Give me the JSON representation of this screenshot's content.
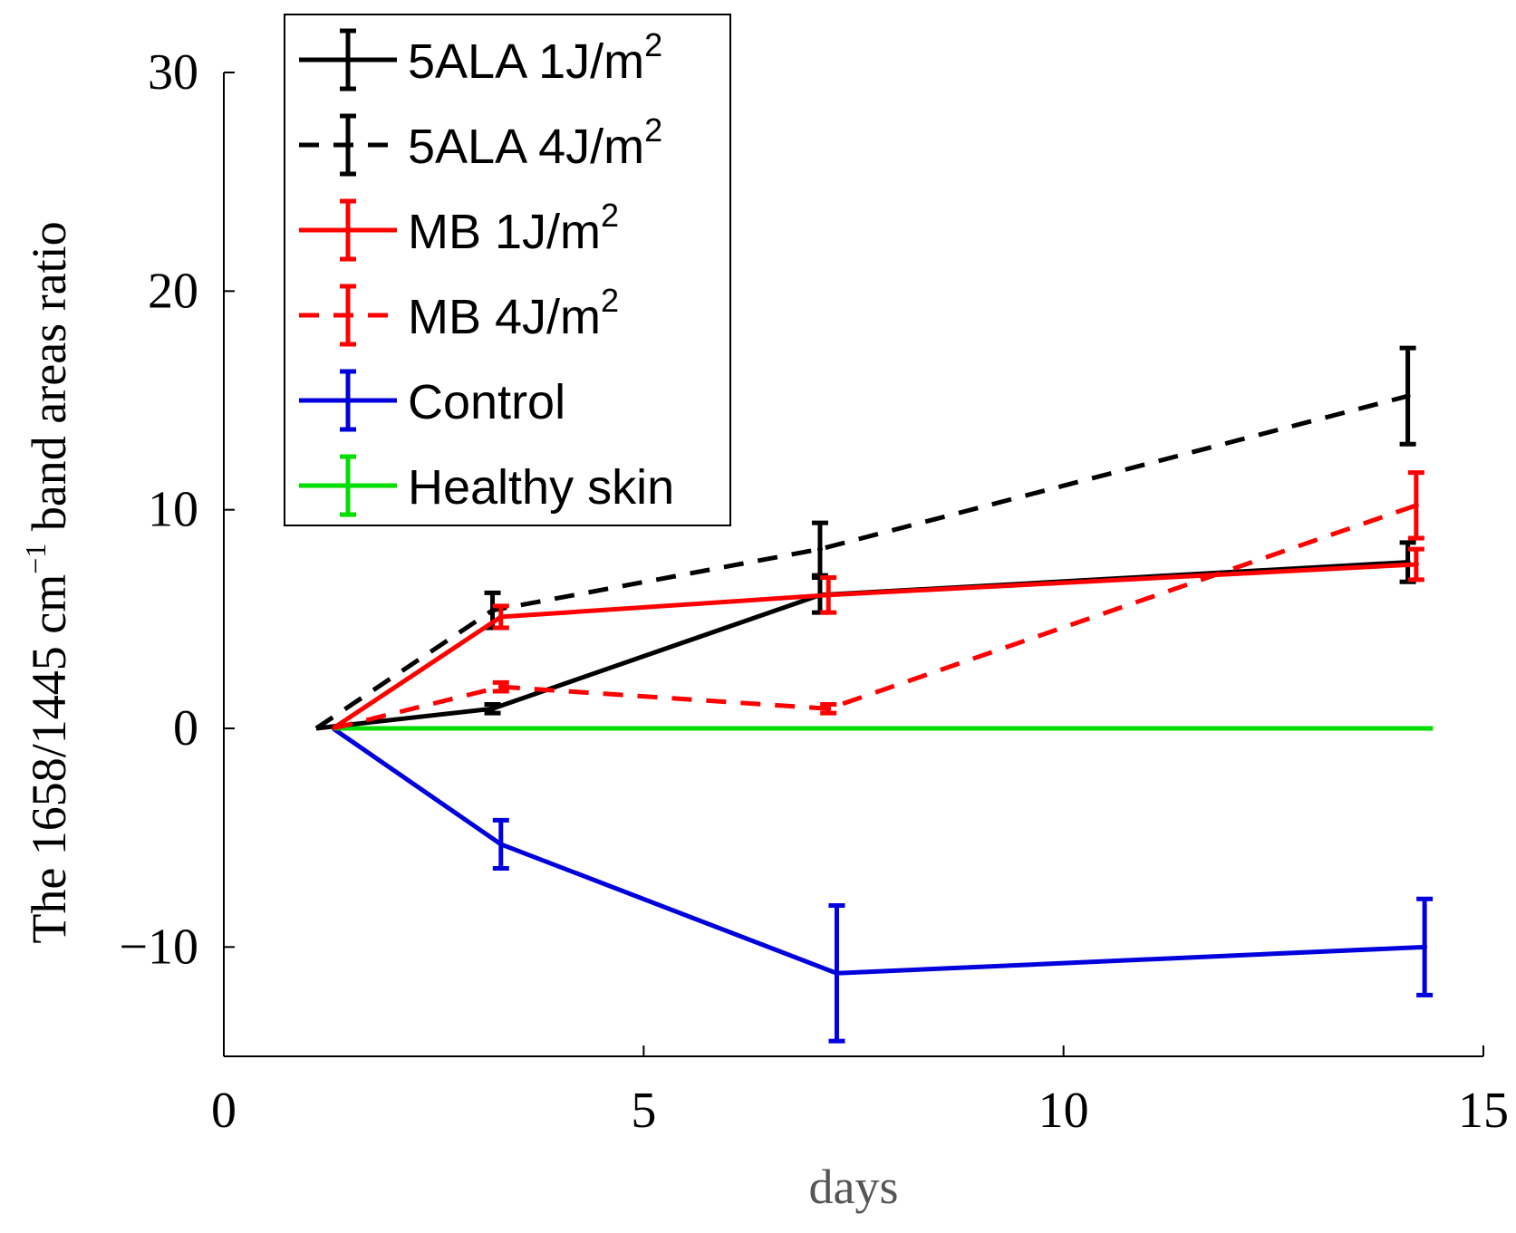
{
  "chart_data": {
    "type": "line",
    "title": "",
    "xlabel": "days",
    "ylabel": "The 1658/1445 cm",
    "ylabel_sup": "−1",
    "ylabel_rest": " band areas ratio",
    "xlim": [
      0,
      15
    ],
    "ylim": [
      -15,
      30
    ],
    "xticks": [
      0,
      5,
      10,
      15
    ],
    "yticks": [
      30,
      20,
      10,
      0,
      -10
    ],
    "ytick_labels": [
      "30",
      "20",
      "10",
      "0",
      "−10"
    ],
    "grid": false,
    "legend_position": "top-left",
    "series": [
      {
        "name": "5ALA 1J/m",
        "sup": "2",
        "color": "#000000",
        "dashed": false,
        "x": [
          1.1,
          3.2,
          7.1,
          14.1
        ],
        "y": [
          0,
          0.9,
          6.1,
          7.6
        ],
        "err": [
          0,
          0.2,
          0.8,
          0.9
        ]
      },
      {
        "name": "5ALA 4J/m",
        "sup": "2",
        "color": "#000000",
        "dashed": true,
        "x": [
          1.1,
          3.2,
          7.1,
          14.1
        ],
        "y": [
          0,
          5.4,
          8.2,
          15.2
        ],
        "err": [
          0,
          0.8,
          1.2,
          2.2
        ]
      },
      {
        "name": "MB 1J/m",
        "sup": "2",
        "color": "#ff0000",
        "dashed": false,
        "x": [
          1.3,
          3.3,
          7.2,
          14.2
        ],
        "y": [
          0,
          5.1,
          6.1,
          7.5
        ],
        "err": [
          0,
          0.5,
          0.8,
          0.7
        ]
      },
      {
        "name": "MB 4J/m",
        "sup": "2",
        "color": "#ff0000",
        "dashed": true,
        "x": [
          1.3,
          3.3,
          7.2,
          14.2
        ],
        "y": [
          0,
          1.9,
          0.9,
          10.2
        ],
        "err": [
          0,
          0.2,
          0.2,
          1.5
        ]
      },
      {
        "name": "Control",
        "sup": "",
        "color": "#0000dd",
        "dashed": false,
        "x": [
          1.3,
          3.3,
          7.3,
          14.3
        ],
        "y": [
          0,
          -5.3,
          -11.2,
          -10.0
        ],
        "err": [
          0,
          1.1,
          3.1,
          2.2
        ]
      },
      {
        "name": "Healthy skin",
        "sup": "",
        "color": "#00dd00",
        "dashed": false,
        "x": [
          1.3,
          14.4
        ],
        "y": [
          0,
          0
        ],
        "err": [
          0,
          0
        ]
      }
    ]
  }
}
